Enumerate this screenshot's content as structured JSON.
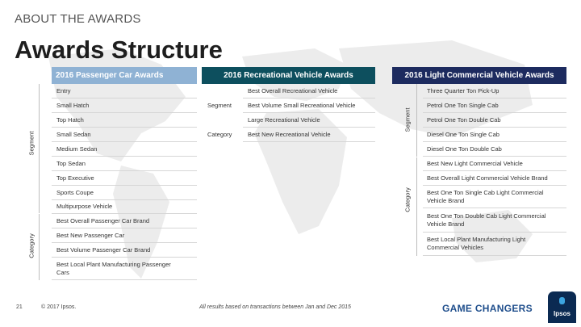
{
  "eyebrow": "ABOUT THE AWARDS",
  "title": "Awards Structure",
  "passenger": {
    "header": "2016 Passenger Car Awards",
    "segment_label": "Segment",
    "category_label": "Category",
    "rows": [
      "Entry",
      "Small Hatch",
      "Top Hatch",
      "Small Sedan",
      "Medium Sedan",
      "Top Sedan",
      "Top Executive",
      "Sports Coupe",
      "Multipurpose Vehicle",
      "Best Overall Passenger Car Brand",
      "Best New Passenger Car",
      "Best Volume Passenger Car Brand",
      "Best Local Plant Manufacturing Passenger Cars"
    ]
  },
  "recreational": {
    "header": "2016 Recreational Vehicle Awards",
    "segment_label": "Segment",
    "category_label": "Category",
    "rows": [
      "Best Overall Recreational Vehicle",
      "Best Volume Small Recreational Vehicle",
      "Large Recreational Vehicle",
      "Best New Recreational Vehicle"
    ]
  },
  "commercial": {
    "header": "2016 Light Commercial Vehicle Awards",
    "segment_label": "Segment",
    "category_label": "Category",
    "rows": [
      "Three Quarter Ton Pick-Up",
      "Petrol One Ton Single Cab",
      "Petrol One Ton Double Cab",
      "Diesel One Ton Single Cab",
      "Diesel One Ton Double Cab",
      "Best New Light Commercial Vehicle",
      "Best Overall Light Commercial Vehicle Brand",
      "Best One Ton Single Cab Light Commercial Vehicle Brand",
      "Best One Ton Double Cab Light Commercial Vehicle Brand",
      "Best Local Plant Manufacturing Light Commercial Vehicles"
    ]
  },
  "footer": {
    "page_number": "21",
    "copyright": "© 2017 Ipsos.",
    "note": "All results based on transactions between Jan and Dec 2015",
    "brand": "GAME CHANGERS",
    "logo_text": "Ipsos"
  },
  "colors": {
    "passenger_header": "#8fb2d4",
    "recreational_header": "#0d4f5e",
    "commercial_header": "#1d2b5f",
    "map": "#e9e9e9"
  }
}
